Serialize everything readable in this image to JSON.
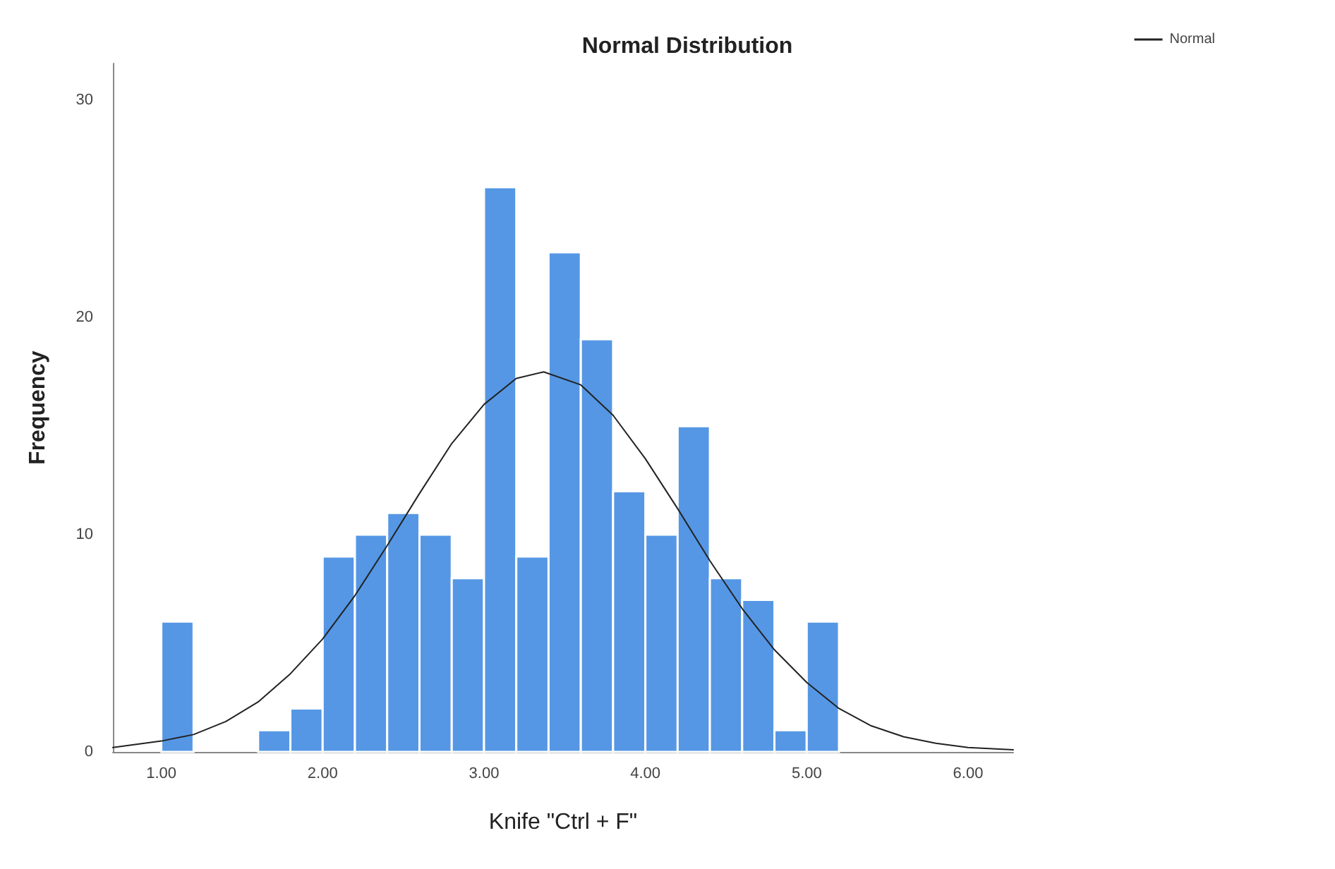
{
  "chart_data": {
    "type": "histogram",
    "title": "Normal Distribution",
    "xlabel": "Knife \"Ctrl + F\"",
    "ylabel": "Frequency",
    "bins": [
      1.0,
      1.2,
      1.4,
      1.6,
      1.8,
      2.0,
      2.2,
      2.4,
      2.6,
      2.8,
      3.0,
      3.2,
      3.4,
      3.6,
      3.8,
      4.0,
      4.2,
      4.4,
      4.6,
      4.8,
      5.0,
      5.2
    ],
    "series": [
      {
        "color": "#5597e4",
        "values": [
          6,
          0,
          0,
          1,
          2,
          9,
          10,
          11,
          10,
          8,
          26,
          9,
          23,
          19,
          12,
          10,
          15,
          8,
          7,
          1,
          6
        ]
      },
      {
        "type": "line",
        "name": "Normal",
        "color": "#222222",
        "x": [
          0.7,
          1.0,
          1.2,
          1.4,
          1.6,
          1.8,
          2.0,
          2.2,
          2.4,
          2.6,
          2.8,
          3.0,
          3.2,
          3.37,
          3.6,
          3.8,
          4.0,
          4.2,
          4.4,
          4.6,
          4.8,
          5.0,
          5.2,
          5.4,
          5.6,
          5.8,
          6.0,
          6.28
        ],
        "values": [
          0.2,
          0.5,
          0.8,
          1.4,
          2.3,
          3.6,
          5.2,
          7.2,
          9.5,
          11.9,
          14.2,
          16.0,
          17.2,
          17.5,
          16.9,
          15.5,
          13.5,
          11.2,
          8.8,
          6.6,
          4.7,
          3.2,
          2.0,
          1.2,
          0.7,
          0.4,
          0.2,
          0.1
        ]
      }
    ],
    "xlim": [
      0.7,
      6.28
    ],
    "xticks": [
      {
        "value": 1,
        "label": "1.00"
      },
      {
        "value": 2,
        "label": "2.00"
      },
      {
        "value": 3,
        "label": "3.00"
      },
      {
        "value": 4,
        "label": "4.00"
      },
      {
        "value": 5,
        "label": "5.00"
      },
      {
        "value": 6,
        "label": "6.00"
      }
    ],
    "ylim": [
      0,
      31.7
    ],
    "yticks": [
      0,
      10,
      20,
      30
    ],
    "legend": "top right",
    "marker": "none",
    "line_style": "solid",
    "grid": false
  }
}
